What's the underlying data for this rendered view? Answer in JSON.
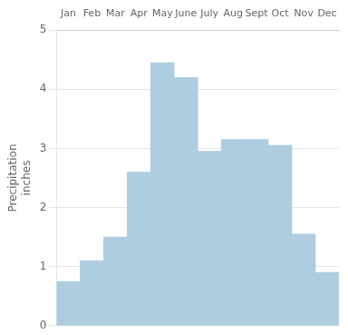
{
  "chart_data": {
    "type": "bar",
    "categories": [
      "Jan",
      "Feb",
      "Mar",
      "Apr",
      "May",
      "June",
      "July",
      "Aug",
      "Sept",
      "Oct",
      "Nov",
      "Dec"
    ],
    "values": [
      0.75,
      1.1,
      1.5,
      2.6,
      4.45,
      4.2,
      2.95,
      3.15,
      3.15,
      3.05,
      1.55,
      0.9
    ],
    "color": "#aecde0",
    "ylabel": "Precipitation\ninches",
    "ylim": [
      0,
      5
    ],
    "yticks": [
      0,
      1,
      2,
      3,
      4,
      5
    ],
    "grid": "y"
  }
}
